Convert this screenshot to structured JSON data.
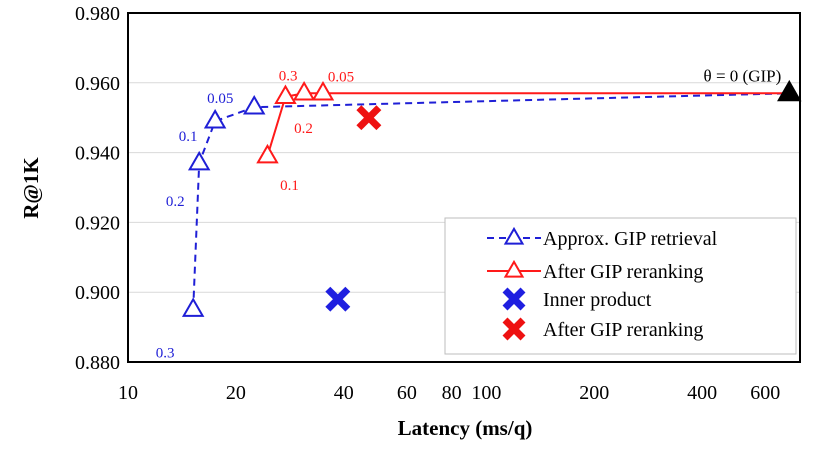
{
  "chart_data": {
    "type": "scatter",
    "title": "",
    "xlabel": "Latency (ms/q)",
    "ylabel": "R@1K",
    "xscale": "log",
    "xlim": [
      10,
      750
    ],
    "ylim": [
      0.88,
      0.98
    ],
    "grid": true,
    "x_ticks": [
      10,
      20,
      40,
      60,
      80,
      100,
      200,
      400,
      600
    ],
    "y_ticks": [
      0.88,
      0.9,
      0.92,
      0.94,
      0.96,
      0.98
    ],
    "y_tick_labels": [
      "0.880",
      "0.900",
      "0.920",
      "0.940",
      "0.960",
      "0.980"
    ],
    "legend_position": "bottom-right",
    "series": [
      {
        "name": "Approx. GIP retrieval",
        "style": "dashed-line-open-triangle",
        "color": "#1f1fd6",
        "points": [
          {
            "x": 15.2,
            "y": 0.895,
            "label": "0.3"
          },
          {
            "x": 15.8,
            "y": 0.937,
            "label": "0.2"
          },
          {
            "x": 17.5,
            "y": 0.949,
            "label": "0.1"
          },
          {
            "x": 22.5,
            "y": 0.953,
            "label": "0.05"
          },
          {
            "x": 700,
            "y": 0.957,
            "label": ""
          }
        ]
      },
      {
        "name": "After GIP reranking",
        "style": "solid-line-open-triangle",
        "color": "#ff1a1a",
        "points": [
          {
            "x": 24.5,
            "y": 0.939,
            "label": "0.1"
          },
          {
            "x": 27.5,
            "y": 0.956,
            "label": "0.2"
          },
          {
            "x": 31.0,
            "y": 0.957,
            "label": "0.3"
          },
          {
            "x": 35.0,
            "y": 0.957,
            "label": "0.05"
          },
          {
            "x": 700,
            "y": 0.957,
            "label": ""
          }
        ]
      },
      {
        "name": "Inner product",
        "style": "x-marker",
        "color": "#1f1fe0",
        "points": [
          {
            "x": 38.5,
            "y": 0.898
          }
        ]
      },
      {
        "name": "After GIP reranking",
        "style": "x-marker",
        "color": "#ee1111",
        "points": [
          {
            "x": 47.0,
            "y": 0.95
          }
        ]
      }
    ],
    "annotations": [
      {
        "text": "θ = 0 (GIP)",
        "x": 700,
        "y": 0.957,
        "marker": "filled-triangle",
        "color": "#000000"
      }
    ]
  }
}
